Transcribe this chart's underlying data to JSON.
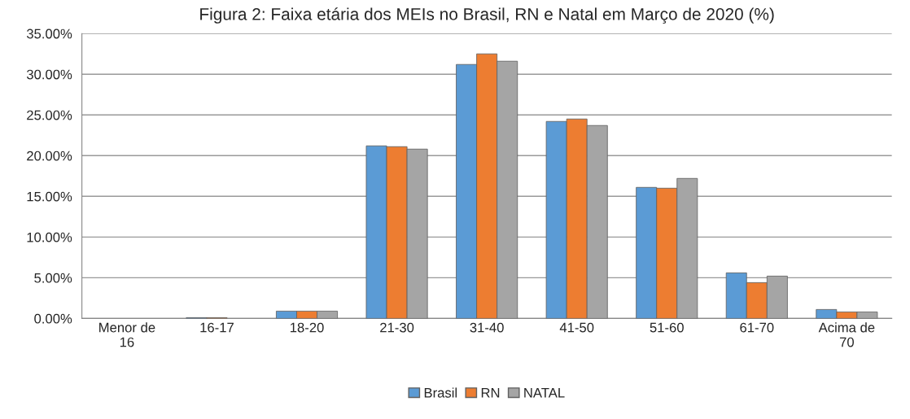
{
  "chart_data": {
    "type": "bar",
    "title": "Figura 2: Faixa etária dos MEIs no Brasil, RN e Natal em Março de 2020 (%)",
    "categories": [
      "Menor de\n16",
      "16-17",
      "18-20",
      "21-30",
      "31-40",
      "41-50",
      "51-60",
      "61-70",
      "Acima de\n70"
    ],
    "series": [
      {
        "name": "Brasil",
        "color": "#5b9bd5",
        "values": [
          0,
          0.1,
          0.9,
          21.2,
          31.2,
          24.2,
          16.1,
          5.6,
          1.1
        ]
      },
      {
        "name": "RN",
        "color": "#ed7d31",
        "values": [
          0,
          0.1,
          0.9,
          21.1,
          32.5,
          24.5,
          16.0,
          4.4,
          0.8
        ]
      },
      {
        "name": "NATAL",
        "color": "#a5a5a5",
        "values": [
          0,
          0,
          0.9,
          20.8,
          31.6,
          23.7,
          17.2,
          5.2,
          0.8
        ]
      }
    ],
    "ylim": [
      0,
      35
    ],
    "yticks": [
      {
        "value": 0,
        "label": "0.00%"
      },
      {
        "value": 5,
        "label": "5.00%"
      },
      {
        "value": 10,
        "label": "10.00%"
      },
      {
        "value": 15,
        "label": "15.00%"
      },
      {
        "value": 20,
        "label": "20.00%"
      },
      {
        "value": 25,
        "label": "25.00%"
      },
      {
        "value": 30,
        "label": "30.00%"
      },
      {
        "value": 35,
        "label": "35.00%"
      }
    ],
    "grid": "y",
    "legend": "bottom"
  }
}
